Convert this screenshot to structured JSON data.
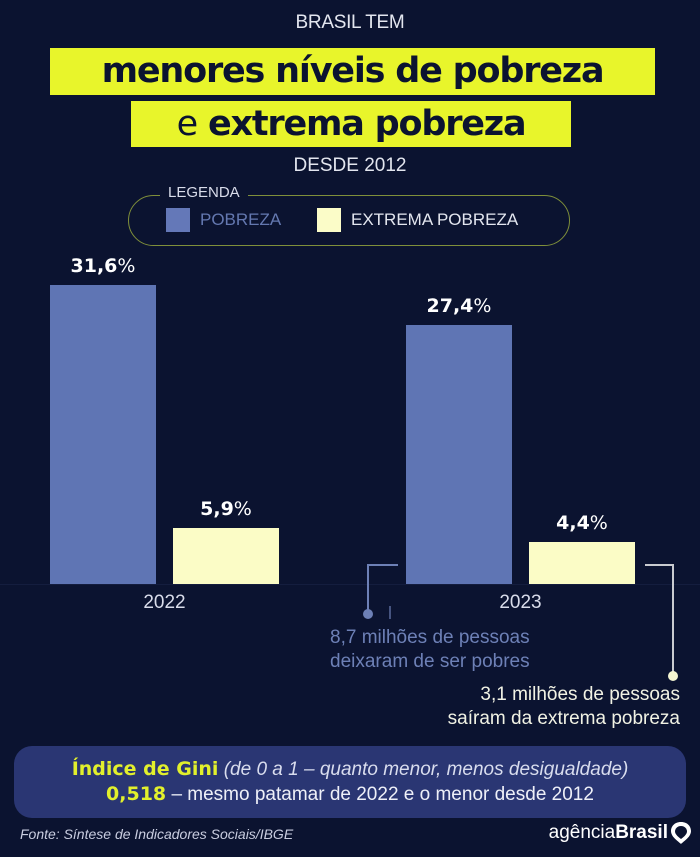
{
  "header": {
    "kicker": "BRASIL TEM",
    "headline_line1": "menores níveis de pobreza",
    "headline_line2_prefix": "e",
    "headline_line2_bold": "extrema pobreza",
    "since": "DESDE 2012"
  },
  "legend": {
    "title": "LEGENDA",
    "items": [
      {
        "label": "POBREZA",
        "color": "#5f75b4"
      },
      {
        "label": "EXTREMA POBREZA",
        "color": "#fbfcc6"
      }
    ]
  },
  "chart_data": {
    "type": "bar",
    "title": "Brasil tem menores níveis de pobreza e extrema pobreza desde 2012",
    "xlabel": "",
    "ylabel": "",
    "categories": [
      "2022",
      "2023"
    ],
    "series": [
      {
        "name": "POBREZA",
        "values": [
          31.6,
          27.4
        ],
        "labels": [
          "31,6%",
          "27,4%"
        ],
        "color": "#5f75b4"
      },
      {
        "name": "EXTREMA POBREZA",
        "values": [
          5.9,
          4.4
        ],
        "labels": [
          "5,9%",
          "4,4%"
        ],
        "color": "#fbfcc6"
      }
    ],
    "unit": "%",
    "ylim": [
      0,
      31.6
    ],
    "grid": false,
    "legend_position": "top-center",
    "annotations": [
      {
        "target": "POBREZA 2023",
        "lines": [
          "8,7 milhões de pessoas",
          "deixaram de ser pobres"
        ],
        "color": "#6d80b6"
      },
      {
        "target": "EXTREMA POBREZA 2023",
        "lines": [
          "3,1 milhões de pessoas",
          "saíram da extrema pobreza"
        ],
        "color": "#f1f2e4"
      }
    ]
  },
  "gini": {
    "title": "Índice de Gini",
    "subtitle": "(de 0 a 1 – quanto menor, menos desigualdade)",
    "value": "0,518",
    "description": "– mesmo patamar de 2022 e o menor desde 2012"
  },
  "footer": {
    "source": "Fonte:  Síntese de Indicadores Sociais/IBGE",
    "logo_light": "agência",
    "logo_bold": "Brasil",
    "logo_icon": "map-pin-icon"
  },
  "colors": {
    "background": "#0b1330",
    "highlight": "#e8f52b",
    "gini_box": "#2a3673"
  }
}
